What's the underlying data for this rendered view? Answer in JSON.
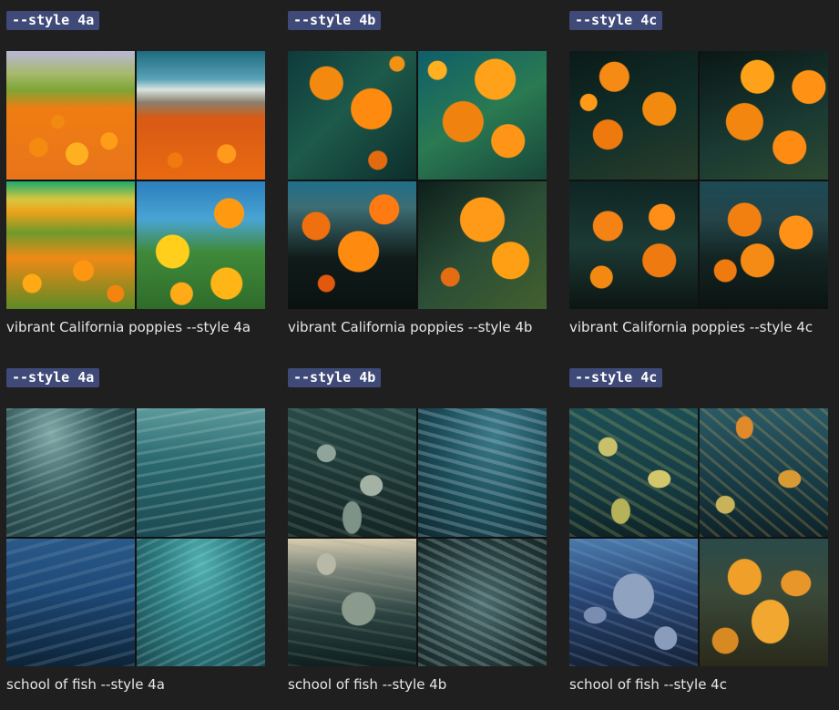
{
  "cards": [
    {
      "tag": "--style 4a",
      "caption": "vibrant California poppies --style 4a"
    },
    {
      "tag": "--style 4b",
      "caption": "vibrant California poppies --style 4b"
    },
    {
      "tag": "--style 4c",
      "caption": "vibrant California poppies --style 4c"
    },
    {
      "tag": "--style 4a",
      "caption": "school of fish --style 4a"
    },
    {
      "tag": "--style 4b",
      "caption": "school of fish --style 4b"
    },
    {
      "tag": "--style 4c",
      "caption": "school of fish --style 4c"
    }
  ],
  "colors": {
    "background": "#1f1f1f",
    "tag_background": "#3f4a78",
    "tag_text": "#ffffff",
    "caption_text": "#e6e6e6"
  }
}
